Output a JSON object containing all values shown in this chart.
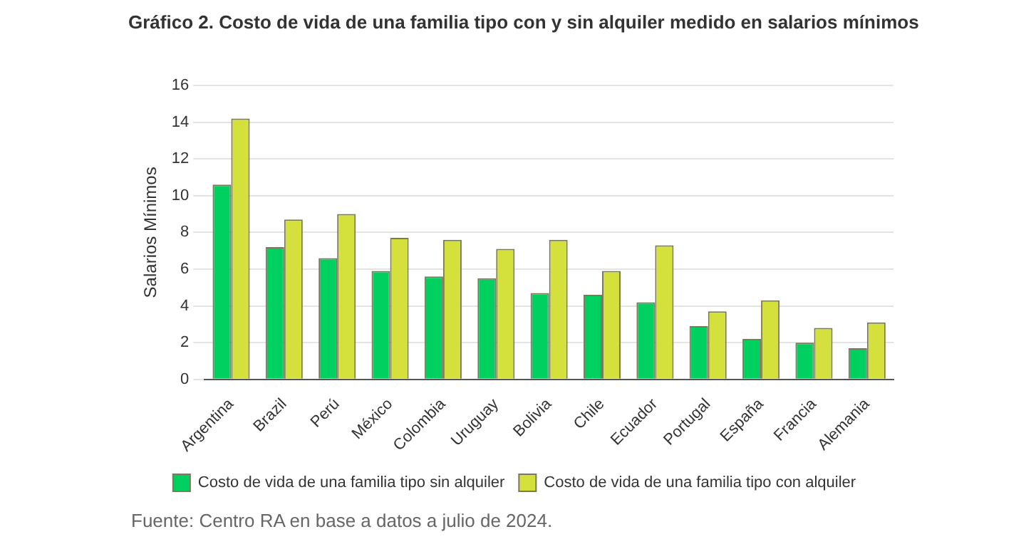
{
  "chart_data": {
    "type": "bar",
    "title": "Gráfico 2. Costo de vida de una familia tipo con y sin alquiler medido en salarios mínimos",
    "ylabel": "Salarios Mínimos",
    "categories": [
      "Argentina",
      "Brazil",
      "Perú",
      "México",
      "Colombia",
      "Uruguay",
      "Bolivia",
      "Chile",
      "Ecuador",
      "Portugal",
      "España",
      "Francia",
      "Alemania"
    ],
    "series": [
      {
        "name": "Costo de vida de una familia tipo sin alquiler",
        "color": "#00d060",
        "values": [
          10.6,
          7.2,
          6.6,
          5.9,
          5.6,
          5.5,
          4.7,
          4.6,
          4.2,
          2.9,
          2.2,
          2.0,
          1.7
        ]
      },
      {
        "name": "Costo de vida de una familia tipo con alquiler",
        "color": "#d4e03c",
        "values": [
          14.2,
          8.7,
          9.0,
          7.7,
          7.6,
          7.1,
          7.6,
          5.9,
          7.3,
          3.7,
          4.3,
          2.8,
          3.1
        ]
      }
    ],
    "ylim": [
      0,
      16
    ],
    "yticks": [
      0,
      2,
      4,
      6,
      8,
      10,
      12,
      14,
      16
    ],
    "grid": "y",
    "legend": "bottom",
    "annotations": [
      "Fuente: Centro RA en base a datos a julio de 2024."
    ]
  }
}
